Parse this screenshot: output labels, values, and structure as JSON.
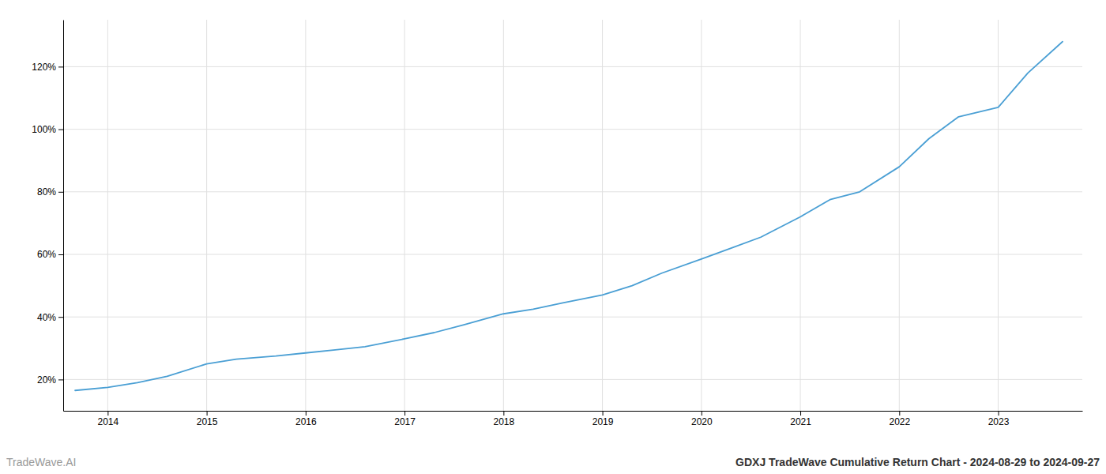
{
  "chart_data": {
    "type": "line",
    "title": "GDXJ TradeWave Cumulative Return Chart - 2024-08-29 to 2024-09-27",
    "annotations": [
      "TradeWave.AI"
    ],
    "x": [
      2013.67,
      2014.0,
      2014.3,
      2014.6,
      2015.0,
      2015.3,
      2015.7,
      2016.0,
      2016.3,
      2016.6,
      2017.0,
      2017.3,
      2017.6,
      2018.0,
      2018.3,
      2018.6,
      2019.0,
      2019.3,
      2019.6,
      2020.0,
      2020.3,
      2020.6,
      2021.0,
      2021.3,
      2021.6,
      2022.0,
      2022.3,
      2022.6,
      2023.0,
      2023.3,
      2023.65
    ],
    "values": [
      16.5,
      17.5,
      19.0,
      21.0,
      25.0,
      26.5,
      27.5,
      28.5,
      29.5,
      30.5,
      33.0,
      35.0,
      37.5,
      41.0,
      42.5,
      44.5,
      47.0,
      50.0,
      54.0,
      58.5,
      62.0,
      65.5,
      72.0,
      77.5,
      80.0,
      88.0,
      97.0,
      104.0,
      107.0,
      118.0,
      128.0
    ],
    "color": "#4a9fd4",
    "xlim": [
      2013.55,
      2023.85
    ],
    "xticks": [
      2014,
      2015,
      2016,
      2017,
      2018,
      2019,
      2020,
      2021,
      2022,
      2023
    ],
    "ylim": [
      10,
      135
    ],
    "yticks": [
      {
        "value": 20,
        "label": "20%"
      },
      {
        "value": 40,
        "label": "40%"
      },
      {
        "value": 60,
        "label": "60%"
      },
      {
        "value": 80,
        "label": "80%"
      },
      {
        "value": 100,
        "label": "100%"
      },
      {
        "value": 120,
        "label": "120%"
      }
    ],
    "grid": true
  }
}
